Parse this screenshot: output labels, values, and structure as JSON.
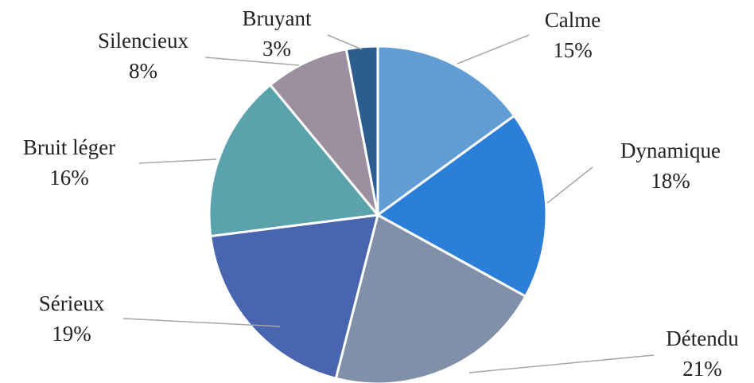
{
  "chart_data": {
    "type": "pie",
    "categories": [
      "Calme",
      "Dynamique",
      "Détendu",
      "Sérieux",
      "Bruit léger",
      "Silencieux",
      "Bruyant"
    ],
    "values": [
      15,
      18,
      21,
      19,
      16,
      8,
      3
    ],
    "value_labels": [
      "15%",
      "18%",
      "21%",
      "19%",
      "16%",
      "8%",
      "3%"
    ],
    "colors": [
      "#5f9dd4",
      "#2b7fd8",
      "#8090a8",
      "#4a65b0",
      "#5aa3ad",
      "#9c8fa0",
      "#2d5d8c"
    ]
  }
}
